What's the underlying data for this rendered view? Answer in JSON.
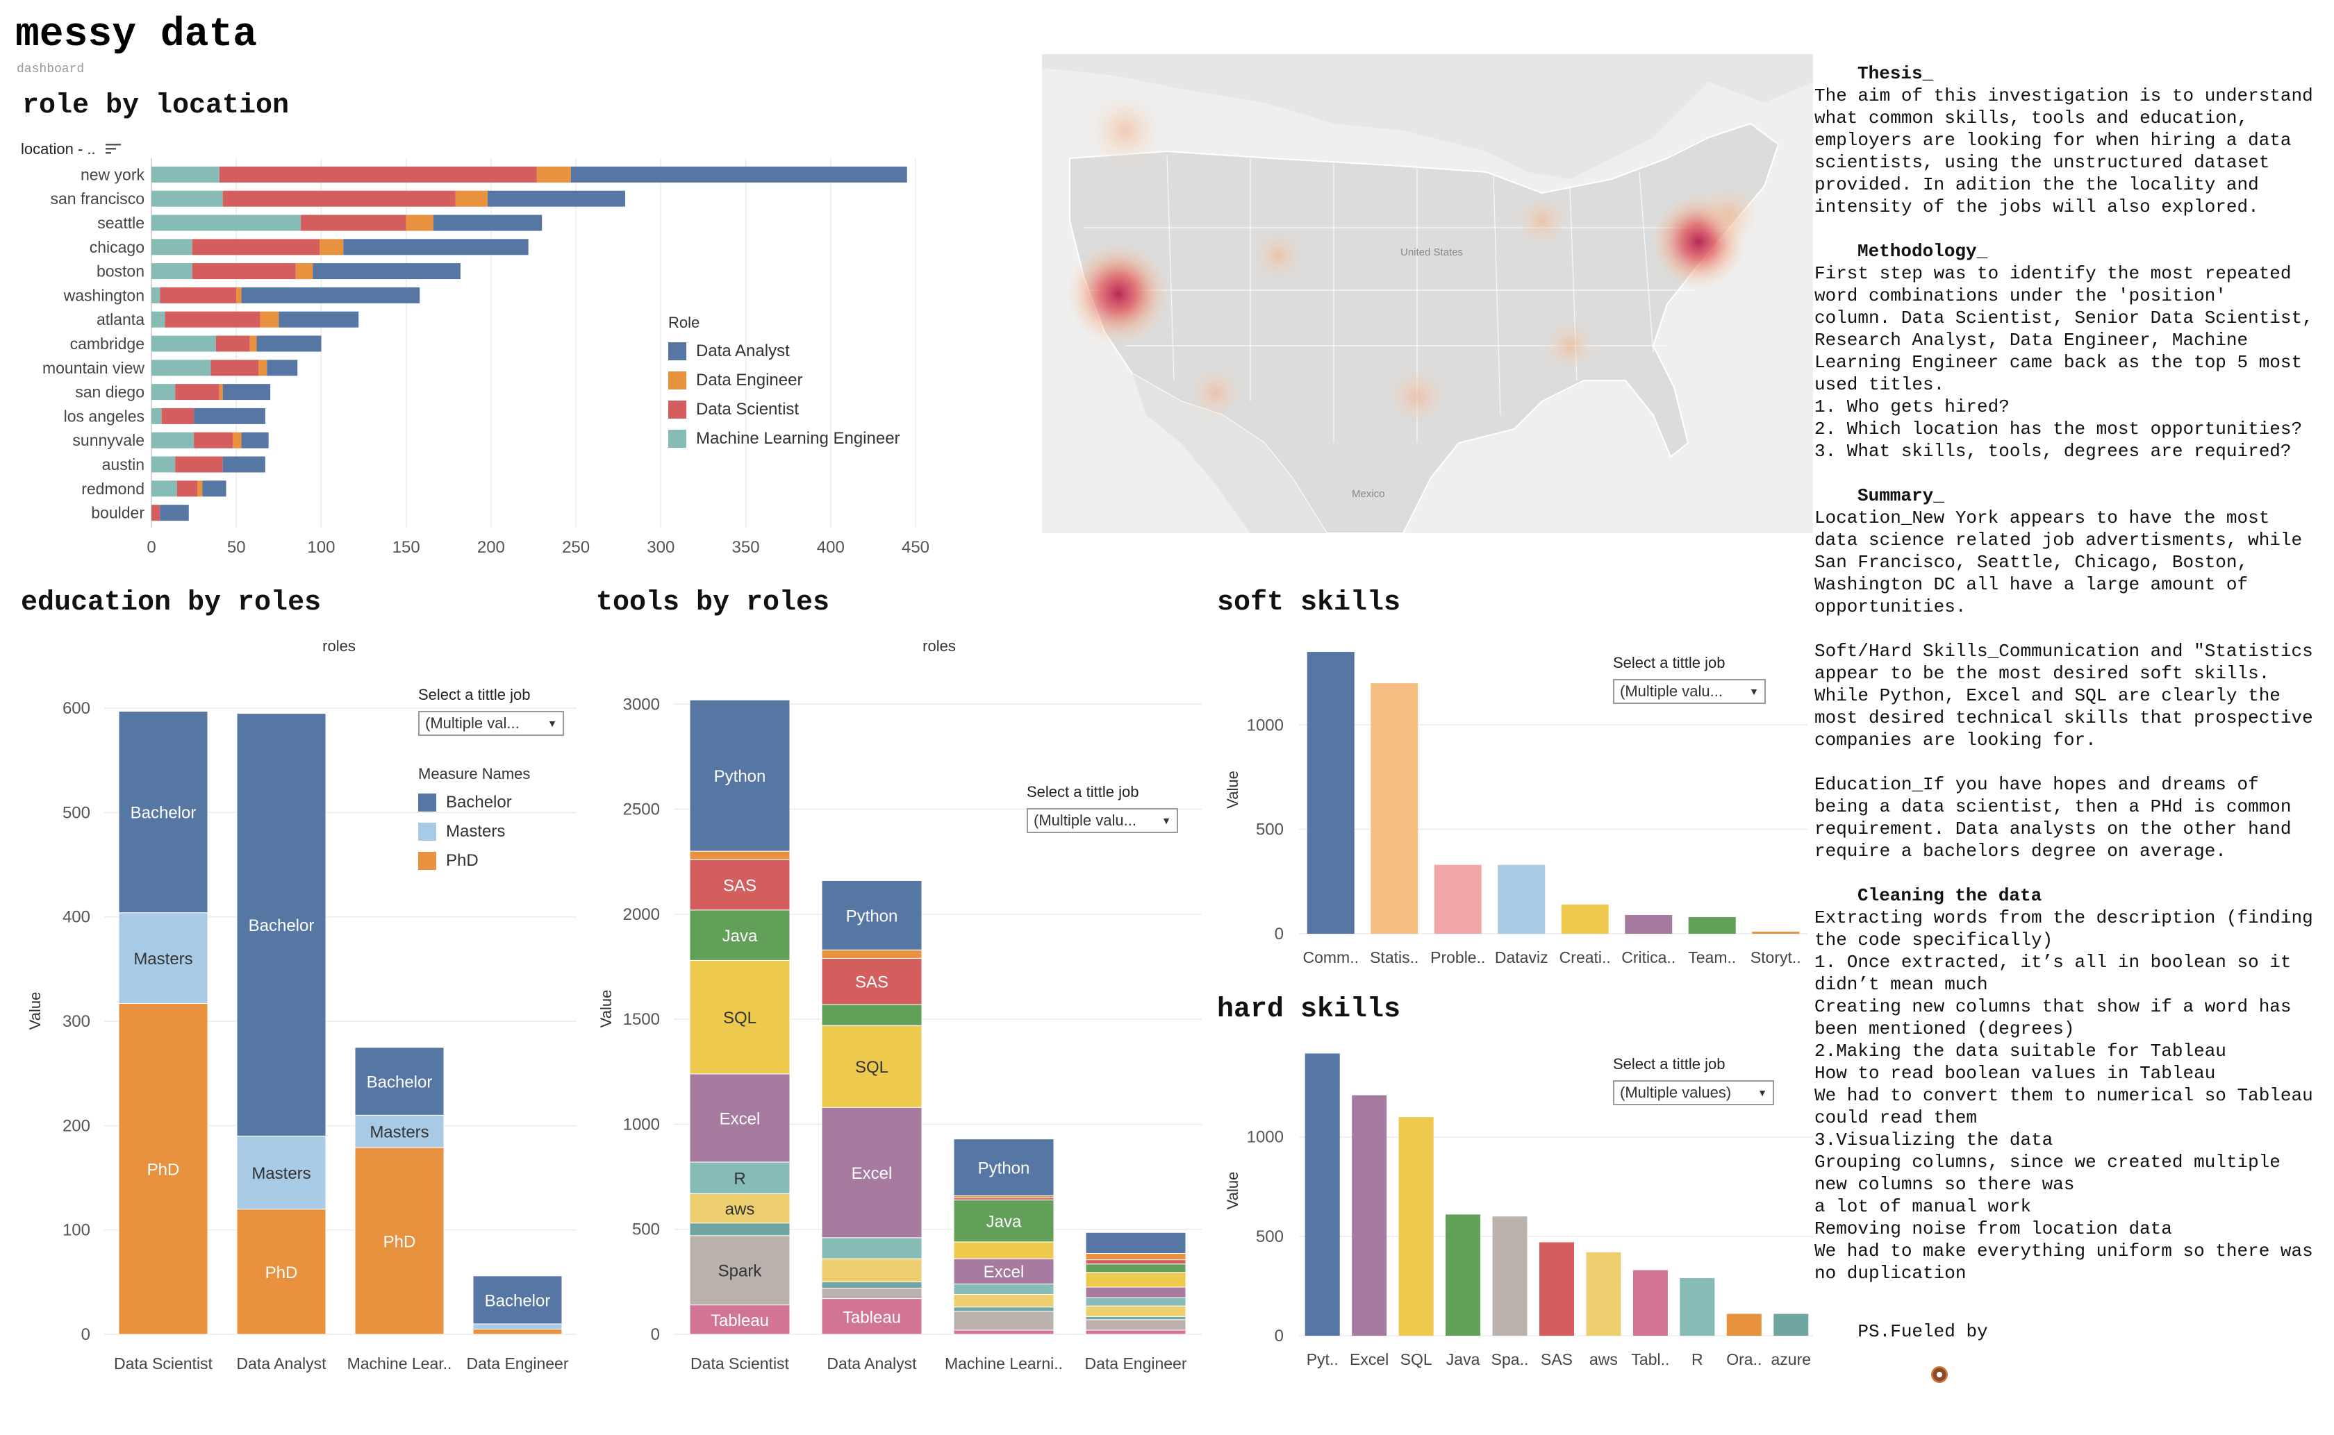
{
  "dashboard": {
    "title": "messy data",
    "subtitle": "dashboard"
  },
  "colors": {
    "data_analyst": "#5677A4",
    "data_engineer": "#E8913E",
    "data_scientist": "#D45E5E",
    "ml_engineer": "#87BBB6",
    "bachelor": "#5677A4",
    "masters": "#A8CAE4",
    "phd": "#E8913E"
  },
  "role_by_location": {
    "title": "role by location",
    "axis_header": "location - ..",
    "sort_icon": "sort-descending-icon",
    "legend_title": "Role",
    "legend": [
      "Data Analyst",
      "Data Engineer",
      "Data Scientist",
      "Machine Learning Engineer"
    ]
  },
  "education_by_roles": {
    "title": "education by roles",
    "header": "roles",
    "ylabel": "Value",
    "select_label": "Select a tittle job",
    "select_value": "(Multiple val...",
    "legend_title": "Measure Names",
    "legend": [
      "Bachelor",
      "Masters",
      "PhD"
    ]
  },
  "tools_by_roles": {
    "title": "tools by roles",
    "header": "roles",
    "ylabel": "Value",
    "select_label": "Select a tittle job",
    "select_value": "(Multiple valu..."
  },
  "soft_skills": {
    "title": "soft skills",
    "ylabel": "Value",
    "select_label": "Select a tittle job",
    "select_value": "(Multiple valu..."
  },
  "hard_skills": {
    "title": "hard skills",
    "ylabel": "Value",
    "select_label": "Select a tittle job",
    "select_value": "(Multiple values)"
  },
  "map": {
    "labels": [
      "United States",
      "Mexico"
    ]
  },
  "text_panel": {
    "thesis_title": "Thesis_",
    "thesis": "The aim of this investigation is to understand\nwhat common skills, tools and education,\nemployers are looking for when hiring a data\nscientists, using the unstructured dataset\nprovided. In adition the the locality and\nintensity of the jobs will also explored.",
    "methodology_title": "Methodology_",
    "methodology": "First step was to identify the most repeated\nword combinations under the 'position'\ncolumn. Data Scientist, Senior Data Scientist,\nResearch Analyst, Data Engineer, Machine\nLearning Engineer came back as the top 5 most\nused titles.\n1. Who gets hired?\n2. Which location has the most opportunities?\n3. What skills, tools, degrees are required?",
    "summary_title": "Summary_",
    "summary_1": "Location_New York appears to have the most\ndata science related job advertisments, while\nSan Francisco, Seattle, Chicago, Boston,\nWashington DC all have a large amount of\nopportunities.",
    "summary_2": "Soft/Hard Skills_Communication and \"Statistics\nappear to be the most desired soft skills.\nWhile Python, Excel and SQL are clearly the\nmost desired technical skills that prospective\ncompanies are looking for.",
    "summary_3": "Education_If you have hopes and dreams of\nbeing a data scientist, then a PHd is common\nrequirement. Data analysts on the other hand\nrequire a bachelors degree on average.",
    "cleaning_title": "Cleaning the data",
    "cleaning": "Extracting words from the description (finding\nthe code specifically)\n1. Once extracted, it’s all in boolean so it\ndidn’t mean much\nCreating new columns that show if a word has\nbeen mentioned (degrees)\n2.Making the data suitable for Tableau\nHow to read boolean values in Tableau\nWe had to convert them to numerical so Tableau\ncould read them\n3.Visualizing the data\nGrouping columns, since we created multiple\nnew columns so there was\na lot of manual work\nRemoving noise from location data\nWe had to make everything uniform so there was\nno duplication",
    "ps": "PS.Fueled by",
    "ps_icon": "donut-icon"
  },
  "chart_data": [
    {
      "id": "role_by_location",
      "type": "bar",
      "orientation": "horizontal",
      "stacked": true,
      "categories": [
        "new york",
        "san francisco",
        "seattle",
        "chicago",
        "boston",
        "washington",
        "atlanta",
        "cambridge",
        "mountain view",
        "san diego",
        "los angeles",
        "sunnyvale",
        "austin",
        "redmond",
        "boulder"
      ],
      "series": [
        {
          "name": "Machine Learning Engineer",
          "values": [
            40,
            42,
            88,
            24,
            24,
            5,
            8,
            38,
            35,
            14,
            6,
            25,
            14,
            15,
            0
          ]
        },
        {
          "name": "Data Scientist",
          "values": [
            187,
            137,
            62,
            75,
            61,
            45,
            56,
            20,
            28,
            26,
            19,
            23,
            28,
            12,
            5
          ]
        },
        {
          "name": "Data Engineer",
          "values": [
            20,
            19,
            16,
            14,
            10,
            3,
            11,
            4,
            5,
            2,
            0,
            5,
            0,
            3,
            0
          ]
        },
        {
          "name": "Data Analyst",
          "values": [
            198,
            81,
            64,
            109,
            87,
            105,
            47,
            38,
            18,
            28,
            42,
            16,
            25,
            14,
            17
          ]
        }
      ],
      "xlim": [
        0,
        450
      ],
      "xticks": [
        0,
        50,
        100,
        150,
        200,
        250,
        300,
        350,
        400,
        450
      ],
      "grid": true
    },
    {
      "id": "education_by_roles",
      "type": "bar",
      "stacked": true,
      "categories": [
        "Data Scientist",
        "Data Analyst",
        "Machine Lear..",
        "Data Engineer"
      ],
      "series": [
        {
          "name": "PhD",
          "values": [
            317,
            120,
            179,
            5
          ]
        },
        {
          "name": "Masters",
          "values": [
            87,
            70,
            31,
            5
          ]
        },
        {
          "name": "Bachelor",
          "values": [
            193,
            405,
            65,
            46
          ]
        }
      ],
      "ylim": [
        0,
        620
      ],
      "yticks": [
        0,
        100,
        200,
        300,
        400,
        500,
        600
      ],
      "ylabel": "Value",
      "grid": true,
      "legend": "right"
    },
    {
      "id": "tools_by_roles",
      "type": "bar",
      "stacked": true,
      "categories": [
        "Data Scientist",
        "Data Analyst",
        "Machine Learni..",
        "Data Engineer"
      ],
      "series": [
        {
          "name": "Tableau",
          "color": "#D17495",
          "values": [
            140,
            170,
            20,
            20
          ]
        },
        {
          "name": "Spark",
          "color": "#BAB0AC",
          "values": [
            330,
            50,
            90,
            50
          ]
        },
        {
          "name": "",
          "color": "#6FA6A1",
          "values": [
            60,
            30,
            20,
            15
          ]
        },
        {
          "name": "aws",
          "color": "#EDCF6F",
          "values": [
            140,
            110,
            60,
            50
          ]
        },
        {
          "name": "R",
          "color": "#87BBB6",
          "values": [
            150,
            100,
            50,
            40
          ]
        },
        {
          "name": "Excel",
          "color": "#A77AA0",
          "values": [
            420,
            620,
            120,
            50
          ]
        },
        {
          "name": "SQL",
          "color": "#EDC94E",
          "values": [
            540,
            390,
            80,
            70
          ]
        },
        {
          "name": "Java",
          "color": "#62A05A",
          "values": [
            240,
            100,
            200,
            40
          ]
        },
        {
          "name": "SAS",
          "color": "#D45E5E",
          "values": [
            240,
            220,
            10,
            20
          ]
        },
        {
          "name": "",
          "color": "#E8913E",
          "values": [
            40,
            40,
            10,
            30
          ]
        },
        {
          "name": "Python",
          "color": "#5677A4",
          "values": [
            720,
            330,
            270,
            100
          ]
        }
      ],
      "ylim": [
        0,
        3100
      ],
      "yticks": [
        0,
        500,
        1000,
        1500,
        2000,
        2500,
        3000
      ],
      "ylabel": "Value",
      "grid": true
    },
    {
      "id": "soft_skills",
      "type": "bar",
      "categories": [
        "Comm..",
        "Statis..",
        "Proble..",
        "Dataviz",
        "Creati..",
        "Critica..",
        "Team..",
        "Storyt.."
      ],
      "values": [
        1350,
        1200,
        330,
        330,
        140,
        90,
        80,
        10
      ],
      "colors": [
        "#5677A4",
        "#F6BF82",
        "#F2A6A8",
        "#A8CAE4",
        "#EDC94E",
        "#A77AA0",
        "#62A05A",
        "#E8913E"
      ],
      "ylim": [
        0,
        1380
      ],
      "yticks": [
        0,
        500,
        1000
      ],
      "ylabel": "Value",
      "grid": true
    },
    {
      "id": "hard_skills",
      "type": "bar",
      "categories": [
        "Pyt..",
        "Excel",
        "SQL",
        "Java",
        "Spa..",
        "SAS",
        "aws",
        "Tabl..",
        "R",
        "Ora..",
        "azure"
      ],
      "values": [
        1420,
        1210,
        1100,
        610,
        600,
        470,
        420,
        330,
        290,
        110,
        110
      ],
      "colors": [
        "#5677A4",
        "#A77AA0",
        "#EDC94E",
        "#62A05A",
        "#BAB0AC",
        "#D45E5E",
        "#EDCF6F",
        "#D17495",
        "#87BBB6",
        "#E8913E",
        "#6FA6A1"
      ],
      "ylim": [
        0,
        1460
      ],
      "yticks": [
        0,
        500,
        1000
      ],
      "ylabel": "Value",
      "grid": true
    }
  ]
}
